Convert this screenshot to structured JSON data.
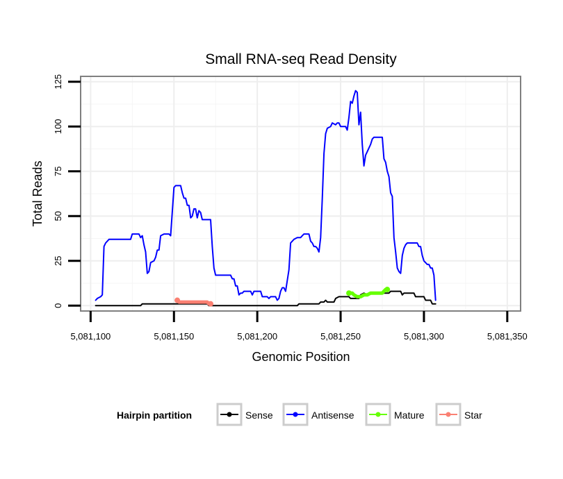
{
  "chart_data": {
    "type": "line",
    "title": "Small RNA-seq Read Density",
    "xlabel": "Genomic Position",
    "ylabel": "Total Reads",
    "xlim": [
      5081094,
      5081358
    ],
    "ylim": [
      -3,
      128
    ],
    "x_ticks": [
      5081100,
      5081150,
      5081200,
      5081250,
      5081300,
      5081350
    ],
    "x_tick_labels": [
      "5,081,100",
      "5,081,150",
      "5,081,200",
      "5,081,250",
      "5,081,300",
      "5,081,350"
    ],
    "y_ticks": [
      0,
      25,
      50,
      75,
      100,
      125
    ],
    "y_tick_labels": [
      "0",
      "25",
      "50",
      "75",
      "100",
      "125"
    ],
    "grid": true,
    "legend": {
      "title": "Hairpin partition",
      "position": "bottom",
      "entries": [
        {
          "name": "Sense",
          "color": "#000000"
        },
        {
          "name": "Antisense",
          "color": "#0000ff"
        },
        {
          "name": "Mature",
          "color": "#66ff00"
        },
        {
          "name": "Star",
          "color": "#fa8072"
        }
      ]
    },
    "series": [
      {
        "name": "Antisense",
        "color": "#0000ff",
        "points": [
          [
            5081103,
            3
          ],
          [
            5081104,
            4
          ],
          [
            5081106,
            5
          ],
          [
            5081107,
            6
          ],
          [
            5081108,
            33
          ],
          [
            5081109,
            35
          ],
          [
            5081111,
            37
          ],
          [
            5081124,
            37
          ],
          [
            5081125,
            40
          ],
          [
            5081129,
            40
          ],
          [
            5081130,
            38
          ],
          [
            5081131,
            39
          ],
          [
            5081132,
            34
          ],
          [
            5081133,
            30
          ],
          [
            5081134,
            18
          ],
          [
            5081135,
            19
          ],
          [
            5081136,
            24
          ],
          [
            5081138,
            25
          ],
          [
            5081139,
            27
          ],
          [
            5081140,
            31
          ],
          [
            5081141,
            31
          ],
          [
            5081142,
            39
          ],
          [
            5081144,
            40
          ],
          [
            5081147,
            40
          ],
          [
            5081148,
            39
          ],
          [
            5081150,
            66
          ],
          [
            5081151,
            67
          ],
          [
            5081154,
            67
          ],
          [
            5081155,
            63
          ],
          [
            5081156,
            60
          ],
          [
            5081157,
            60
          ],
          [
            5081158,
            56
          ],
          [
            5081159,
            56
          ],
          [
            5081160,
            49
          ],
          [
            5081161,
            50
          ],
          [
            5081162,
            54
          ],
          [
            5081163,
            54
          ],
          [
            5081164,
            49
          ],
          [
            5081165,
            53
          ],
          [
            5081166,
            52
          ],
          [
            5081167,
            48
          ],
          [
            5081172,
            48
          ],
          [
            5081173,
            33
          ],
          [
            5081174,
            21
          ],
          [
            5081175,
            17
          ],
          [
            5081176,
            17
          ],
          [
            5081184,
            17
          ],
          [
            5081185,
            15
          ],
          [
            5081186,
            15
          ],
          [
            5081187,
            11
          ],
          [
            5081188,
            11
          ],
          [
            5081189,
            6
          ],
          [
            5081190,
            7
          ],
          [
            5081191,
            7
          ],
          [
            5081192,
            8
          ],
          [
            5081196,
            8
          ],
          [
            5081197,
            6
          ],
          [
            5081198,
            8
          ],
          [
            5081202,
            8
          ],
          [
            5081203,
            5
          ],
          [
            5081206,
            5
          ],
          [
            5081207,
            4
          ],
          [
            5081208,
            5
          ],
          [
            5081211,
            5
          ],
          [
            5081212,
            3
          ],
          [
            5081213,
            4
          ],
          [
            5081214,
            8
          ],
          [
            5081215,
            10
          ],
          [
            5081216,
            10
          ],
          [
            5081217,
            8
          ],
          [
            5081218,
            14
          ],
          [
            5081219,
            20
          ],
          [
            5081220,
            35
          ],
          [
            5081221,
            36
          ],
          [
            5081222,
            37
          ],
          [
            5081224,
            38
          ],
          [
            5081226,
            38
          ],
          [
            5081227,
            39
          ],
          [
            5081228,
            40
          ],
          [
            5081231,
            40
          ],
          [
            5081232,
            36
          ],
          [
            5081233,
            35
          ],
          [
            5081234,
            33
          ],
          [
            5081235,
            33
          ],
          [
            5081236,
            32
          ],
          [
            5081237,
            30
          ],
          [
            5081238,
            38
          ],
          [
            5081239,
            60
          ],
          [
            5081240,
            85
          ],
          [
            5081241,
            96
          ],
          [
            5081242,
            99
          ],
          [
            5081244,
            100
          ],
          [
            5081245,
            102
          ],
          [
            5081247,
            101
          ],
          [
            5081248,
            102
          ],
          [
            5081249,
            102
          ],
          [
            5081250,
            100
          ],
          [
            5081251,
            100
          ],
          [
            5081253,
            100
          ],
          [
            5081254,
            98
          ],
          [
            5081255,
            105
          ],
          [
            5081256,
            114
          ],
          [
            5081257,
            113
          ],
          [
            5081258,
            117
          ],
          [
            5081259,
            120
          ],
          [
            5081260,
            119
          ],
          [
            5081261,
            101
          ],
          [
            5081262,
            108
          ],
          [
            5081263,
            90
          ],
          [
            5081264,
            78
          ],
          [
            5081265,
            84
          ],
          [
            5081266,
            86
          ],
          [
            5081267,
            88
          ],
          [
            5081268,
            90
          ],
          [
            5081269,
            93
          ],
          [
            5081270,
            94
          ],
          [
            5081275,
            94
          ],
          [
            5081276,
            82
          ],
          [
            5081277,
            80
          ],
          [
            5081278,
            75
          ],
          [
            5081279,
            72
          ],
          [
            5081280,
            63
          ],
          [
            5081281,
            61
          ],
          [
            5081282,
            38
          ],
          [
            5081283,
            30
          ],
          [
            5081284,
            21
          ],
          [
            5081285,
            19
          ],
          [
            5081286,
            18
          ],
          [
            5081287,
            28
          ],
          [
            5081288,
            32
          ],
          [
            5081289,
            34
          ],
          [
            5081290,
            35
          ],
          [
            5081296,
            35
          ],
          [
            5081297,
            33
          ],
          [
            5081298,
            33
          ],
          [
            5081299,
            28
          ],
          [
            5081300,
            25
          ],
          [
            5081301,
            24
          ],
          [
            5081302,
            23
          ],
          [
            5081303,
            23
          ],
          [
            5081304,
            21
          ],
          [
            5081305,
            21
          ],
          [
            5081306,
            17
          ],
          [
            5081307,
            3
          ]
        ]
      },
      {
        "name": "Sense",
        "color": "#000000",
        "points": [
          [
            5081103,
            0
          ],
          [
            5081130,
            0
          ],
          [
            5081131,
            1
          ],
          [
            5081170,
            1
          ],
          [
            5081171,
            0
          ],
          [
            5081224,
            0
          ],
          [
            5081225,
            1
          ],
          [
            5081237,
            1
          ],
          [
            5081238,
            2
          ],
          [
            5081240,
            2
          ],
          [
            5081241,
            3
          ],
          [
            5081242,
            2
          ],
          [
            5081246,
            2
          ],
          [
            5081247,
            4
          ],
          [
            5081249,
            5
          ],
          [
            5081255,
            5
          ],
          [
            5081256,
            4
          ],
          [
            5081261,
            4
          ],
          [
            5081262,
            6
          ],
          [
            5081264,
            7
          ],
          [
            5081266,
            6
          ],
          [
            5081268,
            7
          ],
          [
            5081279,
            7
          ],
          [
            5081280,
            8
          ],
          [
            5081286,
            8
          ],
          [
            5081287,
            6
          ],
          [
            5081288,
            7
          ],
          [
            5081294,
            7
          ],
          [
            5081295,
            5
          ],
          [
            5081300,
            5
          ],
          [
            5081301,
            3
          ],
          [
            5081304,
            3
          ],
          [
            5081305,
            1
          ],
          [
            5081307,
            1
          ]
        ]
      },
      {
        "name": "Mature",
        "color": "#66ff00",
        "points": [
          [
            5081255,
            7
          ],
          [
            5081257,
            7
          ],
          [
            5081258,
            6
          ],
          [
            5081260,
            5
          ],
          [
            5081262,
            5
          ],
          [
            5081264,
            6
          ],
          [
            5081266,
            6
          ],
          [
            5081268,
            7
          ],
          [
            5081275,
            7
          ],
          [
            5081276,
            8
          ],
          [
            5081277,
            9
          ],
          [
            5081278,
            9
          ]
        ]
      },
      {
        "name": "Star",
        "color": "#fa8072",
        "points": [
          [
            5081152,
            3
          ],
          [
            5081153,
            2
          ],
          [
            5081170,
            2
          ],
          [
            5081171,
            1
          ],
          [
            5081172,
            1
          ]
        ]
      }
    ]
  }
}
